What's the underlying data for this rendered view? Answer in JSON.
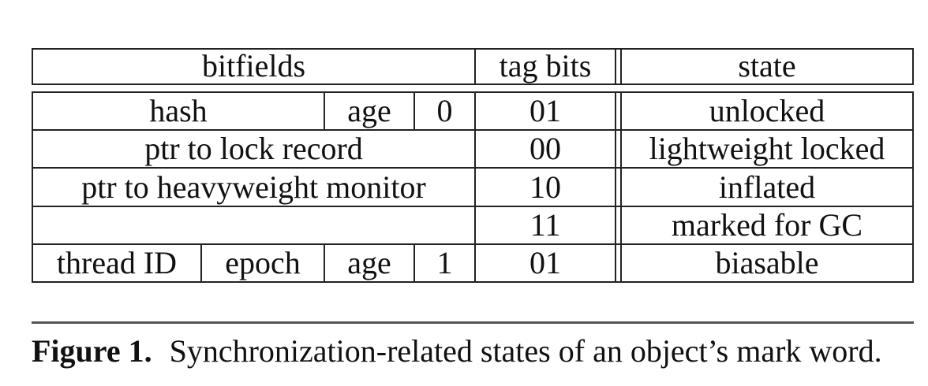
{
  "table": {
    "header": {
      "bitfields": "bitfields",
      "tag_bits": "tag bits",
      "state": "state"
    },
    "rows": [
      {
        "bitfields": [
          "hash",
          "age",
          "0"
        ],
        "tag_bits": "01",
        "state": "unlocked"
      },
      {
        "bitfields": [
          "ptr to lock record"
        ],
        "tag_bits": "00",
        "state": "lightweight locked"
      },
      {
        "bitfields": [
          "ptr to heavyweight monitor"
        ],
        "tag_bits": "10",
        "state": "inflated"
      },
      {
        "bitfields": [
          ""
        ],
        "tag_bits": "11",
        "state": "marked for GC"
      },
      {
        "bitfields": [
          "thread ID",
          "epoch",
          "age",
          "1"
        ],
        "tag_bits": "01",
        "state": "biasable"
      }
    ]
  },
  "caption": {
    "label": "Figure 1.",
    "text": "Synchronization-related states of an object’s mark word."
  }
}
